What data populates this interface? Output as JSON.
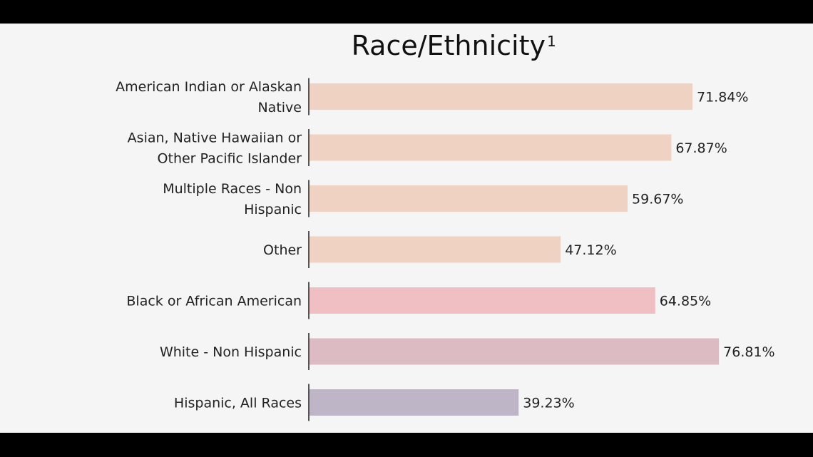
{
  "chart_data": {
    "type": "bar",
    "orientation": "horizontal",
    "title": "Race/Ethnicity",
    "title_superscript": "1",
    "categories": [
      "American Indian or Alaskan Native",
      "Asian, Native Hawaiian or Other Pacific Islander",
      "Multiple Races - Non Hispanic",
      "Other",
      "Black or African American",
      "White - Non Hispanic",
      "Hispanic, All Races"
    ],
    "category_lines": [
      [
        "American Indian or Alaskan",
        "Native"
      ],
      [
        "Asian, Native Hawaiian or",
        "Other Pacific Islander"
      ],
      [
        "Multiple Races - Non",
        "Hispanic"
      ],
      [
        "Other"
      ],
      [
        "Black or African American"
      ],
      [
        "White - Non Hispanic"
      ],
      [
        "Hispanic, All Races"
      ]
    ],
    "values": [
      71.84,
      67.87,
      59.67,
      47.12,
      64.85,
      76.81,
      39.23
    ],
    "value_labels": [
      "71.84%",
      "67.87%",
      "59.67%",
      "47.12%",
      "64.85%",
      "76.81%",
      "39.23%"
    ],
    "colors": [
      "#f0d2c3",
      "#f0d2c3",
      "#f0d2c3",
      "#f0d2c3",
      "#efbfc3",
      "#dcbcc2",
      "#beb6c6"
    ],
    "xlim": [
      0,
      100
    ],
    "grid": false,
    "legend": "none"
  }
}
